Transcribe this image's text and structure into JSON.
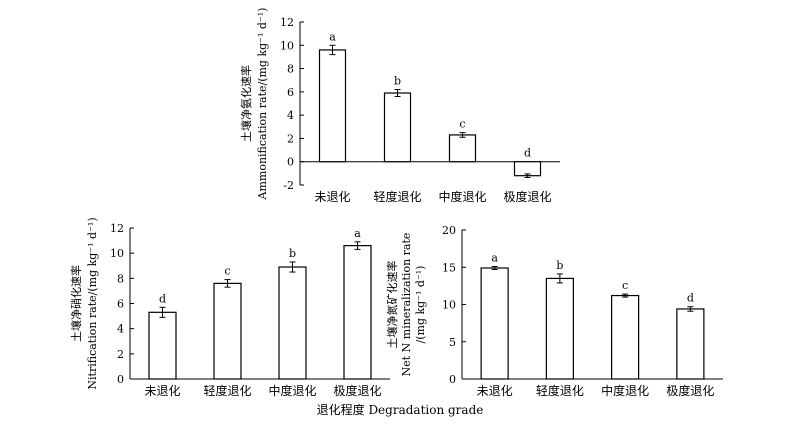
{
  "figure": {
    "xlabel": "退化程度 Degradation grade"
  },
  "chart_data": [
    {
      "type": "bar",
      "categories": [
        "未退化",
        "轻度退化",
        "中度退化",
        "极度退化"
      ],
      "values": [
        9.6,
        5.9,
        2.3,
        -1.2
      ],
      "errors": [
        0.4,
        0.3,
        0.2,
        0.15
      ],
      "significance": [
        "a",
        "b",
        "c",
        "d"
      ],
      "ylabel_line1": "土壤净氨化速率",
      "ylabel_line2": "Ammonification rate/(mg kg⁻¹ d⁻¹)",
      "ylim": [
        -2,
        12
      ],
      "yticks": [
        -2,
        0,
        2,
        4,
        6,
        8,
        10,
        12
      ],
      "zero_line": true,
      "grid": false
    },
    {
      "type": "bar",
      "categories": [
        "未退化",
        "轻度退化",
        "中度退化",
        "极度退化"
      ],
      "values": [
        5.3,
        7.6,
        8.9,
        10.6
      ],
      "errors": [
        0.4,
        0.3,
        0.4,
        0.3
      ],
      "significance": [
        "d",
        "c",
        "b",
        "a"
      ],
      "ylabel_line1": "土壤净硝化速率",
      "ylabel_line2": "Nitrification rate/(mg kg⁻¹ d⁻¹)",
      "ylim": [
        0,
        12
      ],
      "yticks": [
        0,
        2,
        4,
        6,
        8,
        10,
        12
      ],
      "zero_line": false,
      "grid": false
    },
    {
      "type": "bar",
      "categories": [
        "未退化",
        "轻度退化",
        "中度退化",
        "极度退化"
      ],
      "values": [
        14.9,
        13.5,
        11.2,
        9.4
      ],
      "errors": [
        0.2,
        0.6,
        0.2,
        0.3
      ],
      "significance": [
        "a",
        "b",
        "c",
        "d"
      ],
      "ylabel_line1": "土壤净氮矿化速率",
      "ylabel_line2": "Net N mineralization rate",
      "ylabel_line3": "/(mg kg⁻¹ d⁻¹)",
      "ylim": [
        0,
        20
      ],
      "yticks": [
        0,
        5,
        10,
        15,
        20
      ],
      "zero_line": false,
      "grid": false
    }
  ]
}
